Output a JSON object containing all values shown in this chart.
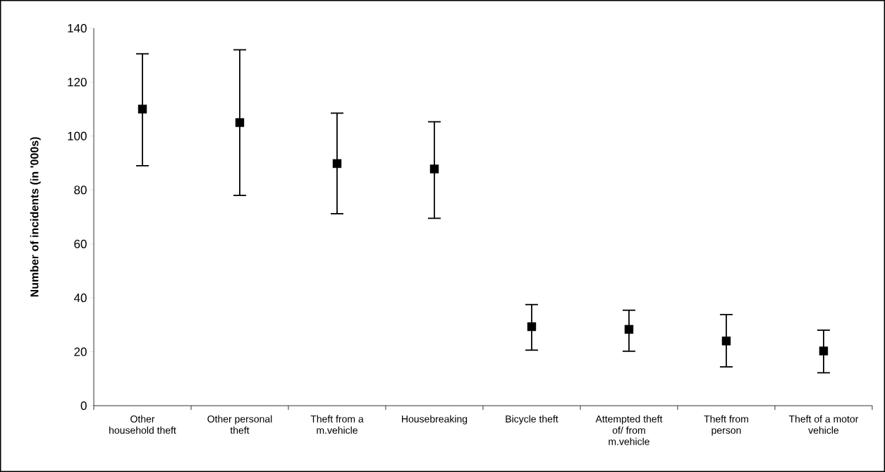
{
  "chart_data": {
    "type": "scatter",
    "ylabel": "Number of incidents (in '000s)",
    "categories": [
      "Other household theft",
      "Other personal theft",
      "Theft from a m.vehicle",
      "Housebreaking",
      "Bicycle theft",
      "Attempted theft of/ from m.vehicle",
      "Theft from person",
      "Theft of a motor vehicle"
    ],
    "values": [
      110,
      105,
      89.8,
      87.8,
      29.3,
      28.3,
      24,
      20.3
    ],
    "errors": [
      [
        89,
        130.5
      ],
      [
        78,
        132
      ],
      [
        71.2,
        108.5
      ],
      [
        69.5,
        105.3
      ],
      [
        20.6,
        37.5
      ],
      [
        20.2,
        35.4
      ],
      [
        14.4,
        33.8
      ],
      [
        12.2,
        28
      ]
    ],
    "color": "#000000",
    "marker": "square",
    "ylim": [
      0,
      140
    ],
    "yticks": [
      0,
      20,
      40,
      60,
      80,
      100,
      120,
      140
    ],
    "grid": false
  }
}
